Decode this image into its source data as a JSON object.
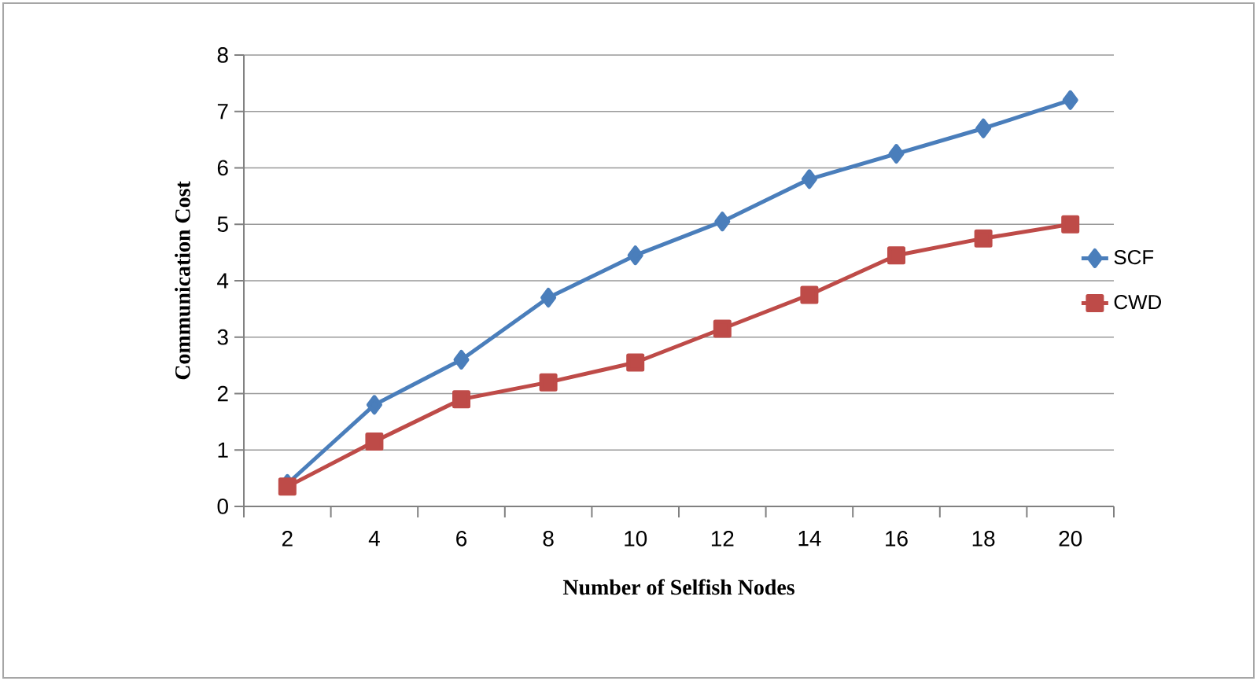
{
  "chart_data": {
    "type": "line",
    "xlabel": "Number of Selfish Nodes",
    "ylabel": "Communication Cost",
    "categories": [
      "2",
      "4",
      "6",
      "8",
      "10",
      "12",
      "14",
      "16",
      "18",
      "20"
    ],
    "series": [
      {
        "name": "SCF",
        "color": "#4a7ebb",
        "marker": "diamond",
        "values": [
          0.4,
          1.8,
          2.6,
          3.7,
          4.45,
          5.05,
          5.8,
          6.25,
          6.7,
          7.2
        ]
      },
      {
        "name": "CWD",
        "color": "#be4b48",
        "marker": "square",
        "values": [
          0.35,
          1.15,
          1.9,
          2.2,
          2.55,
          3.15,
          3.75,
          4.45,
          4.75,
          5.0
        ]
      }
    ],
    "ylim": [
      0,
      8
    ],
    "yticks": [
      0,
      1,
      2,
      3,
      4,
      5,
      6,
      7,
      8
    ],
    "grid": "y",
    "legend": "right"
  }
}
